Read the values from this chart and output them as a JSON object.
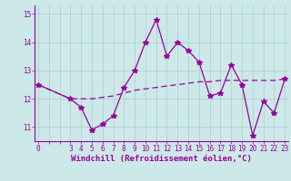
{
  "xlabel": "Windchill (Refroidissement éolien,°C)",
  "x_data": [
    0,
    3,
    4,
    5,
    6,
    7,
    8,
    9,
    10,
    11,
    12,
    13,
    14,
    15,
    16,
    17,
    18,
    19,
    20,
    21,
    22,
    23
  ],
  "y_data": [
    12.5,
    12.0,
    11.7,
    10.9,
    11.1,
    11.4,
    12.4,
    13.0,
    14.0,
    14.8,
    13.5,
    14.0,
    13.7,
    13.3,
    12.1,
    12.2,
    13.2,
    12.5,
    10.7,
    11.9,
    11.5,
    12.7
  ],
  "y_trend": [
    12.5,
    12.0,
    12.0,
    12.0,
    12.05,
    12.1,
    12.2,
    12.3,
    12.35,
    12.4,
    12.45,
    12.5,
    12.55,
    12.6,
    12.6,
    12.65,
    12.65,
    12.65,
    12.65,
    12.65,
    12.65,
    12.7
  ],
  "line_color": "#990099",
  "bg_color": "#cce8e8",
  "grid_color": "#aacccc",
  "ylim": [
    10.5,
    15.3
  ],
  "yticks": [
    11,
    12,
    13,
    14,
    15
  ],
  "marker": "*",
  "marker_size": 4,
  "font_size_ticks": 5.5,
  "font_size_xlabel": 6.5
}
